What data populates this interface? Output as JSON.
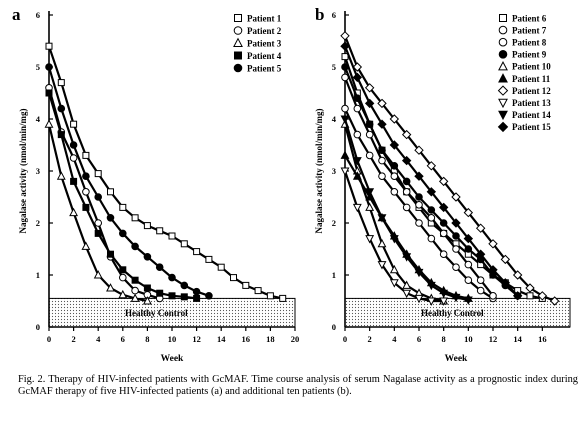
{
  "caption": {
    "text": "Fig. 2. Therapy of HIV-infected patients with GcMAF. Time course analysis of serum Nagalase activity as a prognostic index during GcMAF therapy of five HIV-infected patients (a) and additional ten patients (b)."
  },
  "chart_data": [
    {
      "type": "line",
      "panel_label": "a",
      "xlabel": "Week",
      "ylabel": "Nagalase activity (nmol/min/mg)",
      "xlim": [
        0,
        20
      ],
      "ylim": [
        0,
        6
      ],
      "xticks": [
        0,
        2,
        4,
        6,
        8,
        10,
        12,
        14,
        16,
        18,
        20
      ],
      "yticks": [
        0,
        1,
        2,
        3,
        4,
        5,
        6
      ],
      "healthy_band": {
        "label": "Healthy Control",
        "range": [
          0,
          0.55
        ]
      },
      "legend_position": "top-right",
      "series": [
        {
          "name": "Patient 1",
          "marker": "open-square",
          "x": [
            0,
            1,
            2,
            3,
            4,
            5,
            6,
            7,
            8,
            9,
            10,
            11,
            12,
            13,
            14,
            15,
            16,
            17,
            18,
            19
          ],
          "y": [
            5.4,
            4.7,
            3.9,
            3.3,
            2.95,
            2.6,
            2.3,
            2.1,
            1.95,
            1.85,
            1.75,
            1.6,
            1.45,
            1.3,
            1.15,
            0.95,
            0.8,
            0.7,
            0.6,
            0.55
          ]
        },
        {
          "name": "Patient 2",
          "marker": "open-circle",
          "x": [
            0,
            1,
            2,
            3,
            4,
            5,
            6,
            7,
            8,
            9
          ],
          "y": [
            4.6,
            3.75,
            3.25,
            2.6,
            2.0,
            1.35,
            0.95,
            0.7,
            0.62,
            0.55
          ]
        },
        {
          "name": "Patient 3",
          "marker": "open-triangle",
          "x": [
            0,
            1,
            2,
            3,
            4,
            5,
            6,
            7,
            8
          ],
          "y": [
            3.9,
            2.9,
            2.2,
            1.55,
            1.0,
            0.75,
            0.62,
            0.55,
            0.5
          ]
        },
        {
          "name": "Patient 4",
          "marker": "filled-square",
          "x": [
            0,
            1,
            2,
            3,
            4,
            5,
            6,
            7,
            8,
            9,
            10,
            11,
            12
          ],
          "y": [
            4.5,
            3.7,
            2.8,
            2.3,
            1.8,
            1.4,
            1.1,
            0.9,
            0.75,
            0.65,
            0.6,
            0.58,
            0.55
          ]
        },
        {
          "name": "Patient 5",
          "marker": "filled-circle",
          "x": [
            0,
            1,
            2,
            3,
            4,
            5,
            6,
            7,
            8,
            9,
            10,
            11,
            12,
            13
          ],
          "y": [
            5.0,
            4.2,
            3.5,
            2.9,
            2.5,
            2.1,
            1.8,
            1.55,
            1.35,
            1.15,
            0.95,
            0.8,
            0.68,
            0.6
          ]
        }
      ]
    },
    {
      "type": "line",
      "panel_label": "b",
      "xlabel": "Week",
      "ylabel": "Nagalase activity (nmol/min/mg)",
      "xlim": [
        0,
        18
      ],
      "ylim": [
        0,
        6
      ],
      "xticks": [
        0,
        2,
        4,
        6,
        8,
        10,
        12,
        14,
        16
      ],
      "yticks": [
        0,
        1,
        2,
        3,
        4,
        5,
        6
      ],
      "healthy_band": {
        "label": "Healthy Control",
        "range": [
          0,
          0.55
        ]
      },
      "legend_position": "top-right",
      "series": [
        {
          "name": "Patient 6",
          "marker": "open-square",
          "x": [
            0,
            1,
            2,
            3,
            4,
            5,
            6,
            7,
            8,
            9,
            10,
            11,
            12,
            13,
            14,
            15,
            16
          ],
          "y": [
            5.2,
            4.5,
            3.9,
            3.4,
            3.0,
            2.6,
            2.3,
            2.0,
            1.8,
            1.6,
            1.4,
            1.2,
            1.0,
            0.85,
            0.7,
            0.6,
            0.55
          ]
        },
        {
          "name": "Patient 7",
          "marker": "open-circle",
          "x": [
            0,
            1,
            2,
            3,
            4,
            5,
            6,
            7,
            8,
            9,
            10,
            11,
            12
          ],
          "y": [
            4.2,
            3.7,
            3.3,
            2.9,
            2.6,
            2.3,
            2.0,
            1.7,
            1.4,
            1.15,
            0.9,
            0.7,
            0.55
          ]
        },
        {
          "name": "Patient 8",
          "marker": "open-circle",
          "x": [
            0,
            1,
            2,
            3,
            4,
            5,
            6,
            7,
            8,
            9,
            10,
            11,
            12
          ],
          "y": [
            4.8,
            4.2,
            3.7,
            3.2,
            2.9,
            2.6,
            2.35,
            2.1,
            1.8,
            1.5,
            1.2,
            0.9,
            0.6
          ]
        },
        {
          "name": "Patient 9",
          "marker": "filled-circle",
          "x": [
            0,
            1,
            2,
            3,
            4,
            5,
            6,
            7,
            8,
            9,
            10,
            11,
            12,
            13,
            14
          ],
          "y": [
            5.0,
            4.4,
            3.9,
            3.4,
            3.1,
            2.8,
            2.5,
            2.25,
            2.0,
            1.75,
            1.5,
            1.3,
            1.0,
            0.8,
            0.6
          ]
        },
        {
          "name": "Patient 10",
          "marker": "open-triangle",
          "x": [
            0,
            1,
            2,
            3,
            4,
            5,
            6,
            7,
            8
          ],
          "y": [
            3.9,
            3.0,
            2.3,
            1.6,
            1.1,
            0.8,
            0.65,
            0.55,
            0.5
          ]
        },
        {
          "name": "Patient 11",
          "marker": "filled-triangle",
          "x": [
            0,
            1,
            2,
            3,
            4,
            5,
            6,
            7,
            8,
            9,
            10
          ],
          "y": [
            3.3,
            2.9,
            2.5,
            2.1,
            1.75,
            1.4,
            1.1,
            0.85,
            0.7,
            0.6,
            0.55
          ]
        },
        {
          "name": "Patient 12",
          "marker": "open-diamond",
          "x": [
            0,
            1,
            2,
            3,
            4,
            5,
            6,
            7,
            8,
            9,
            10,
            11,
            12,
            13,
            14,
            15,
            16,
            17
          ],
          "y": [
            5.6,
            5.0,
            4.6,
            4.3,
            4.0,
            3.7,
            3.4,
            3.1,
            2.8,
            2.5,
            2.2,
            1.9,
            1.6,
            1.3,
            1.0,
            0.75,
            0.6,
            0.5
          ]
        },
        {
          "name": "Patient 13",
          "marker": "open-triangle-down",
          "x": [
            0,
            1,
            2,
            3,
            4,
            5,
            6,
            7,
            8
          ],
          "y": [
            3.0,
            2.3,
            1.7,
            1.2,
            0.85,
            0.65,
            0.55,
            0.5,
            0.5
          ]
        },
        {
          "name": "Patient 14",
          "marker": "filled-triangle-down",
          "x": [
            0,
            1,
            2,
            3,
            4,
            5,
            6,
            7,
            8,
            9,
            10
          ],
          "y": [
            4.0,
            3.2,
            2.6,
            2.1,
            1.7,
            1.35,
            1.05,
            0.8,
            0.65,
            0.57,
            0.52
          ]
        },
        {
          "name": "Patient 15",
          "marker": "filled-diamond",
          "x": [
            0,
            1,
            2,
            3,
            4,
            5,
            6,
            7,
            8,
            9,
            10,
            11,
            12,
            13,
            14
          ],
          "y": [
            5.4,
            4.8,
            4.3,
            3.9,
            3.5,
            3.2,
            2.9,
            2.6,
            2.3,
            2.0,
            1.7,
            1.4,
            1.1,
            0.85,
            0.6
          ]
        }
      ]
    }
  ]
}
